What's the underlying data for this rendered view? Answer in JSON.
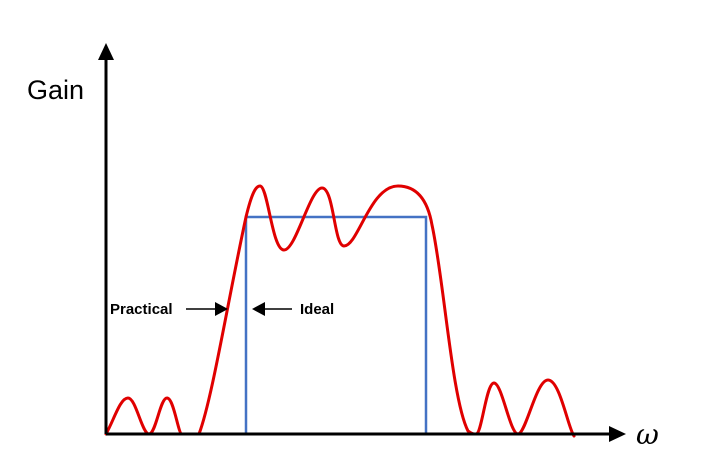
{
  "axes": {
    "y_label": "Gain",
    "x_label": "ω"
  },
  "annotations": {
    "practical": "Practical",
    "ideal": "Ideal"
  },
  "colors": {
    "axis": "#000000",
    "practical_curve": "#e00000",
    "ideal_curve": "#4472c4",
    "background": "#ffffff"
  }
}
